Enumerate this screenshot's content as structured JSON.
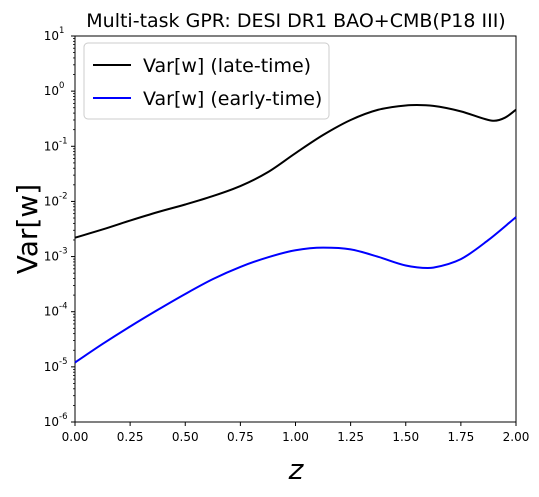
{
  "chart_data": {
    "type": "line",
    "title": "Multi-task GPR: DESI DR1 BAO+CMB(P18 III)",
    "xlabel": "z",
    "ylabel": "Var[w]",
    "xlim": [
      0,
      2
    ],
    "ylim": [
      1e-06,
      10
    ],
    "yscale": "log",
    "xticks": [
      "0.00",
      "0.25",
      "0.50",
      "0.75",
      "1.00",
      "1.25",
      "1.50",
      "1.75",
      "2.00"
    ],
    "yticks": [
      {
        "base": "10",
        "exp": "-6"
      },
      {
        "base": "10",
        "exp": "-5"
      },
      {
        "base": "10",
        "exp": "-4"
      },
      {
        "base": "10",
        "exp": "-3"
      },
      {
        "base": "10",
        "exp": "-2"
      },
      {
        "base": "10",
        "exp": "-1"
      },
      {
        "base": "10",
        "exp": "0"
      },
      {
        "base": "10",
        "exp": "1"
      }
    ],
    "legend_position": "top-left",
    "grid": false,
    "series": [
      {
        "name": "Var[w] (late-time)",
        "color": "#000000",
        "x": [
          0.0,
          0.125,
          0.25,
          0.375,
          0.5,
          0.625,
          0.75,
          0.875,
          1.0,
          1.125,
          1.25,
          1.375,
          1.5,
          1.55,
          1.625,
          1.75,
          1.875,
          1.9,
          1.95,
          2.0
        ],
        "y": [
          0.0022,
          0.0031,
          0.0045,
          0.0064,
          0.0088,
          0.0125,
          0.019,
          0.034,
          0.075,
          0.16,
          0.3,
          0.46,
          0.55,
          0.56,
          0.54,
          0.43,
          0.3,
          0.29,
          0.33,
          0.46
        ]
      },
      {
        "name": "Var[w] (early-time)",
        "color": "#0000ff",
        "x": [
          0.0,
          0.125,
          0.25,
          0.375,
          0.5,
          0.625,
          0.75,
          0.875,
          1.0,
          1.125,
          1.25,
          1.375,
          1.5,
          1.6,
          1.625,
          1.75,
          1.875,
          2.0
        ],
        "y": [
          1.2e-05,
          2.6e-05,
          5.4e-05,
          0.000108,
          0.00021,
          0.00039,
          0.00065,
          0.00097,
          0.0013,
          0.00145,
          0.00135,
          0.00099,
          0.00069,
          0.00062,
          0.00063,
          0.0009,
          0.002,
          0.0052
        ]
      }
    ]
  }
}
